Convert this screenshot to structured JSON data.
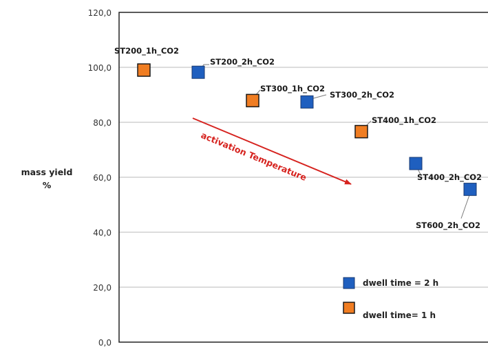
{
  "chart_data": {
    "type": "scatter",
    "ylabel": [
      "mass yield",
      "%"
    ],
    "ylim": [
      0,
      120
    ],
    "yticks": [
      0,
      20,
      40,
      60,
      80,
      100,
      120
    ],
    "ytick_labels": [
      "0,0",
      "20,0",
      "40,0",
      "60,0",
      "80,0",
      "100,0",
      "120,0"
    ],
    "grid": true,
    "points": [
      {
        "label": "ST200_1h_CO2",
        "x": 1,
        "y": 99.0,
        "dwell": "1h"
      },
      {
        "label": "ST200_2h_CO2",
        "x": 2,
        "y": 98.2,
        "dwell": "2h"
      },
      {
        "label": "ST300_1h_CO2",
        "x": 3,
        "y": 87.9,
        "dwell": "1h"
      },
      {
        "label": "ST300_2h_CO2",
        "x": 4,
        "y": 87.4,
        "dwell": "2h"
      },
      {
        "label": "ST400_1h_CO2",
        "x": 5,
        "y": 76.6,
        "dwell": "1h"
      },
      {
        "label": "ST400_2h_CO2",
        "x": 6,
        "y": 65.0,
        "dwell": "2h"
      },
      {
        "label": "ST600_2h_CO2",
        "x": 7,
        "y": 55.6,
        "dwell": "2h"
      }
    ],
    "annotation": "activation Temperature",
    "legend": [
      {
        "key": "2h",
        "name": "dwell time = 2 h",
        "color": "#1f5fbf"
      },
      {
        "key": "1h",
        "name": "dwell time= 1 h",
        "color": "#f07d22"
      }
    ],
    "legend_position": "bottom-right"
  },
  "colors": {
    "orange": "#f07d22",
    "blue": "#1f5fbf",
    "arrow": "#d6231f"
  }
}
